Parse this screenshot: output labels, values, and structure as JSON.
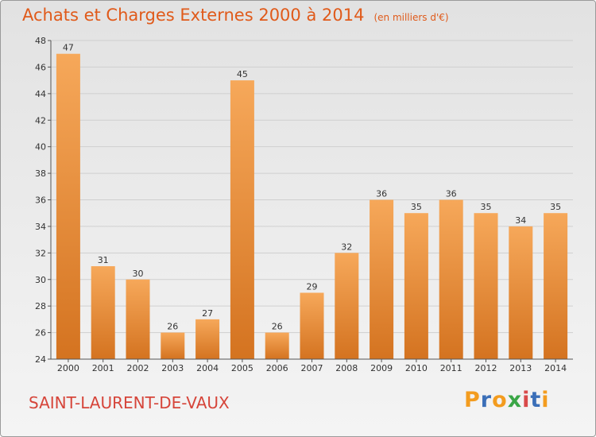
{
  "header": {
    "title": "Achats et Charges Externes 2000 à 2014",
    "subtitle": "(en milliers d'€)"
  },
  "footer": {
    "place_name": "SAINT-LAURENT-DE-VAUX",
    "brand": "Proxiti",
    "brand_colors": [
      "#f39c1f",
      "#3b6fb8",
      "#f39c1f",
      "#3aa646",
      "#d94a4a",
      "#3b6fb8",
      "#f39c1f"
    ]
  },
  "colors": {
    "title": "#e05a1a",
    "place": "#d6453a",
    "bar_light": "#f6a85a",
    "bar_dark": "#d47320"
  },
  "chart_data": {
    "type": "bar",
    "title": "Achats et Charges Externes 2000 à 2014",
    "subtitle": "(en milliers d'€)",
    "categories": [
      "2000",
      "2001",
      "2002",
      "2003",
      "2004",
      "2005",
      "2006",
      "2007",
      "2008",
      "2009",
      "2010",
      "2011",
      "2012",
      "2013",
      "2014"
    ],
    "values": [
      47,
      31,
      30,
      26,
      27,
      45,
      26,
      29,
      32,
      36,
      35,
      36,
      35,
      34,
      35
    ],
    "ylim": [
      24,
      48
    ],
    "yticks": [
      24,
      26,
      28,
      30,
      32,
      34,
      36,
      38,
      40,
      42,
      44,
      46,
      48
    ],
    "grid": true,
    "data_labels": true
  }
}
